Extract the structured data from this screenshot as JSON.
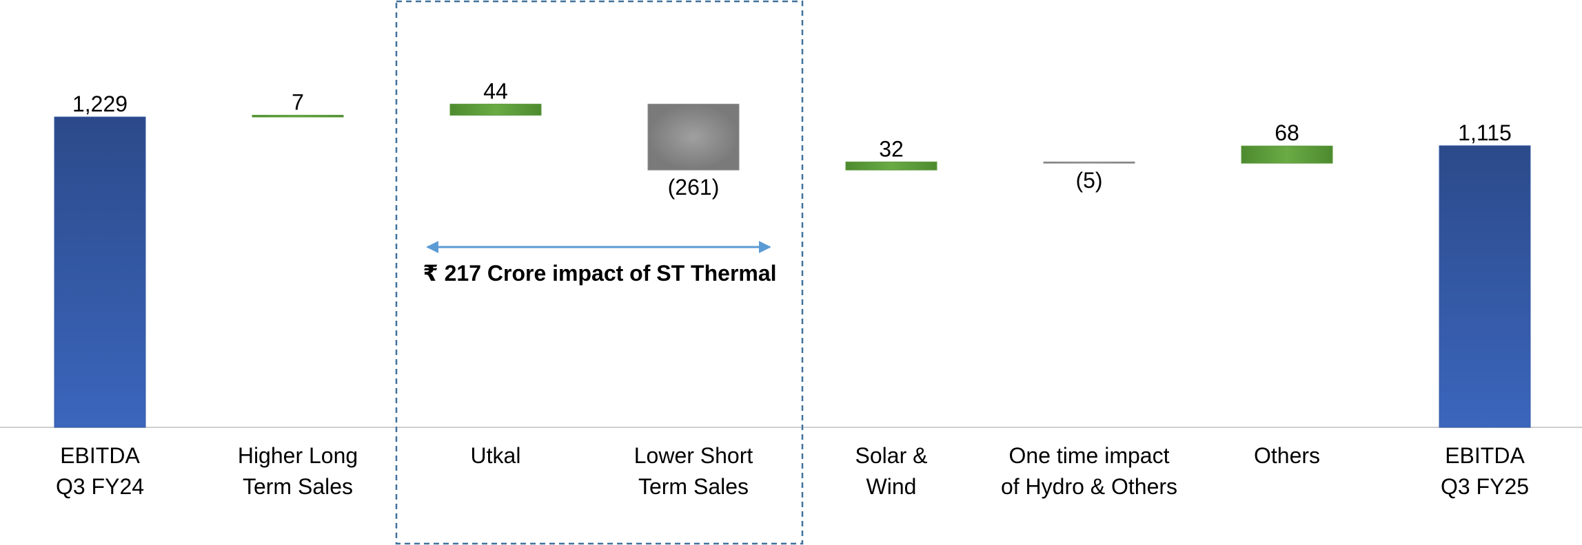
{
  "chart_data": {
    "type": "waterfall",
    "categories": [
      "EBITDA\nQ3 FY24",
      "Higher Long\nTerm Sales",
      "Utkal",
      "Lower Short\nTerm Sales",
      "Solar &\nWind",
      "One time impact\nof Hydro & Others",
      "Others",
      "EBITDA\nQ3 FY25"
    ],
    "measures": [
      "total",
      "relative",
      "relative",
      "relative",
      "relative",
      "relative",
      "relative",
      "total"
    ],
    "values": [
      1229,
      7,
      44,
      -261,
      32,
      -5,
      68,
      1115
    ],
    "value_labels": [
      "1,229",
      "7",
      "44",
      "(261)",
      "32",
      "(5)",
      "68",
      "1,115"
    ],
    "total_color": "#3459a6",
    "increase_color": "#5a9a3a",
    "decrease_color": "#8c8c8c",
    "annotation": "₹ 217 Crore impact of ST Thermal"
  }
}
